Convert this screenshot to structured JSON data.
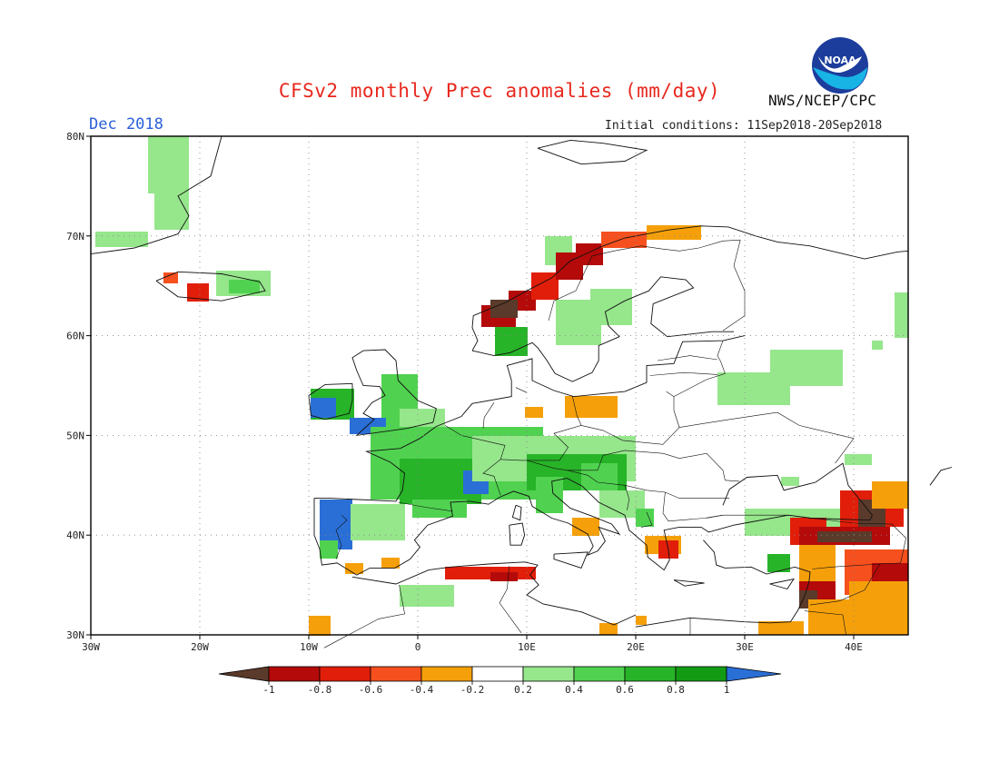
{
  "header": {
    "title": "CFSv2 monthly Prec anomalies (mm/day)",
    "valid_month": "Dec 2018",
    "initial_conditions": "Initial conditions: 11Sep2018-20Sep2018",
    "agency": "NWS/NCEP/CPC",
    "logo_text": "NOAA"
  },
  "map": {
    "region": "Europe",
    "lat_labels": [
      "80N",
      "70N",
      "60N",
      "50N",
      "40N",
      "30N"
    ],
    "lon_labels": [
      "30W",
      "20W",
      "10W",
      "0",
      "10E",
      "20E",
      "30E",
      "40E"
    ],
    "lat_range": [
      30,
      80
    ],
    "lon_range": [
      -30,
      45
    ],
    "grid": "dotted"
  },
  "colorbar": {
    "labels": [
      "-1",
      "-0.8",
      "-0.6",
      "-0.4",
      "-0.2",
      "0.2",
      "0.4",
      "0.6",
      "0.8",
      "1"
    ],
    "colors": {
      "lt_m1": "#5a3a2a",
      "m1_m08": "#b40a0a",
      "m08_m06": "#e11e0a",
      "m06_m04": "#f5501e",
      "m04_m02": "#f5a00a",
      "m02_02": "#ffffff",
      "p02_04": "#96e68c",
      "p04_06": "#50d250",
      "p06_08": "#28b428",
      "p08_1": "#149b14",
      "gt_1": "#2a6fd6"
    }
  }
}
